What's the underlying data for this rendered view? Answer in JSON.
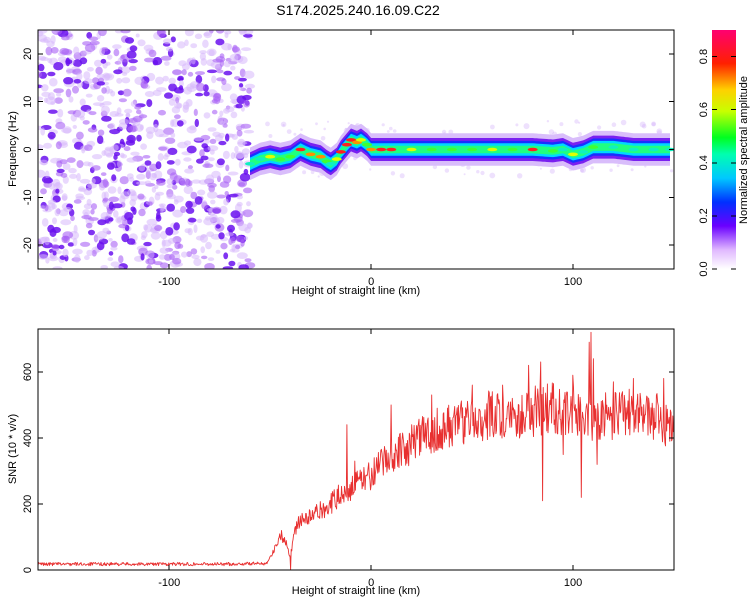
{
  "title": "S174.2025.240.16.09.C22",
  "colors": {
    "snr_line": "#e83030",
    "noise_purple": "#7a1fe8",
    "background": "#ffffff"
  },
  "chart_data": [
    {
      "type": "heatmap",
      "name": "spectrogram",
      "xlabel": "Height of straight line (km)",
      "ylabel": "Frequency (Hz)",
      "xlim": [
        -165,
        150
      ],
      "ylim": [
        -25,
        25
      ],
      "x_ticks": [
        -100,
        0,
        100
      ],
      "x_tick_labels": [
        "-100",
        "0",
        "100"
      ],
      "y_ticks": [
        -20,
        -10,
        0,
        10,
        20
      ],
      "y_tick_labels": [
        "-20",
        "-10",
        "0",
        "10",
        "20"
      ],
      "noise_region_x": [
        -165,
        -60
      ],
      "signal_start_x": -60,
      "signal_track": {
        "x": [
          -60,
          -55,
          -50,
          -45,
          -40,
          -35,
          -30,
          -25,
          -22,
          -20,
          -17,
          -15,
          -12,
          -10,
          -7,
          -5,
          -2,
          0,
          5,
          10,
          20,
          30,
          40,
          50,
          60,
          70,
          80,
          90,
          95,
          100,
          105,
          110,
          120,
          130,
          140,
          148
        ],
        "y": [
          -3,
          -2,
          -1.5,
          -2,
          -1.5,
          0,
          -1,
          -1.5,
          -2.5,
          -3,
          -2,
          -0.5,
          1,
          2,
          1.5,
          2,
          1,
          0,
          0,
          0,
          0,
          0,
          0,
          0,
          0,
          0,
          0,
          -0.3,
          0,
          -1,
          -0.5,
          0.5,
          0.5,
          0,
          0,
          0
        ],
        "peak_amplitude": [
          0.2,
          0.35,
          0.6,
          0.5,
          0.55,
          0.8,
          0.75,
          0.7,
          0.5,
          0.3,
          0.6,
          0.8,
          0.85,
          0.9,
          0.7,
          0.6,
          0.55,
          0.75,
          0.9,
          0.85,
          0.6,
          0.5,
          0.55,
          0.55,
          0.6,
          0.55,
          0.85,
          0.5,
          0.45,
          0.6,
          0.45,
          0.5,
          0.4,
          0.4,
          0.4,
          0.4
        ]
      }
    },
    {
      "type": "colorbar",
      "name": "amplitude-colorbar",
      "label": "Normalized spectral amplitude",
      "range": [
        0,
        0.9
      ],
      "ticks": [
        0.0,
        0.2,
        0.4,
        0.6,
        0.8
      ],
      "tick_labels": [
        "0.0",
        "0.2",
        "0.4",
        "0.6",
        "0.8"
      ]
    },
    {
      "type": "line",
      "name": "snr-plot",
      "xlabel": "Height of straight line (km)",
      "ylabel": "SNR (10 * v/v)",
      "xlim": [
        -165,
        150
      ],
      "ylim": [
        0,
        730
      ],
      "x_ticks": [
        -100,
        0,
        100
      ],
      "x_tick_labels": [
        "-100",
        "0",
        "100"
      ],
      "y_ticks": [
        0,
        200,
        400,
        600
      ],
      "y_tick_labels": [
        "0",
        "200",
        "400",
        "600"
      ],
      "trend": {
        "x": [
          -165,
          -130,
          -100,
          -70,
          -52,
          -48,
          -45,
          -42,
          -40,
          -38,
          -35,
          -30,
          -25,
          -20,
          -15,
          -10,
          -5,
          0,
          10,
          20,
          30,
          40,
          50,
          60,
          70,
          80,
          90,
          100,
          110,
          120,
          130,
          140,
          150
        ],
        "y": [
          18,
          18,
          18,
          18,
          20,
          60,
          110,
          80,
          40,
          120,
          150,
          160,
          180,
          200,
          230,
          250,
          270,
          290,
          340,
          380,
          420,
          440,
          460,
          470,
          470,
          480,
          490,
          480,
          460,
          470,
          480,
          470,
          430
        ]
      },
      "spikes": {
        "x": [
          -40,
          -12,
          -8,
          10,
          20,
          30,
          50,
          60,
          65,
          70,
          78,
          80,
          84,
          85,
          88,
          95,
          100,
          104,
          108,
          109,
          110,
          112,
          115,
          120,
          125,
          130,
          140,
          145,
          148
        ],
        "y": [
          0,
          440,
          330,
          500,
          440,
          530,
          560,
          540,
          560,
          520,
          620,
          440,
          630,
          210,
          450,
          350,
          590,
          220,
          690,
          720,
          640,
          320,
          500,
          570,
          450,
          580,
          490,
          580,
          390
        ]
      }
    }
  ]
}
